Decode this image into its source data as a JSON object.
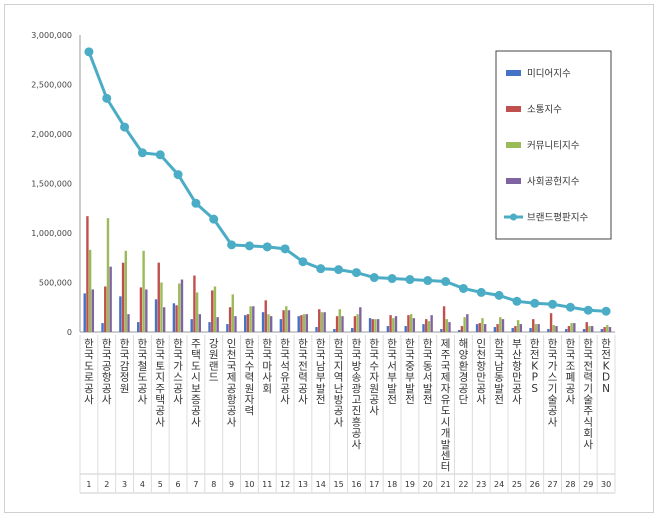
{
  "chart_data": {
    "type": "bar",
    "legend_position": "top-right",
    "grid": false,
    "ylim": [
      0,
      3000000
    ],
    "yticks": [
      "0",
      "500,000",
      "1,000,000",
      "1,500,000",
      "2,000,000",
      "2,500,000",
      "3,000,000"
    ],
    "x": [
      "1",
      "2",
      "3",
      "4",
      "5",
      "6",
      "7",
      "8",
      "9",
      "10",
      "11",
      "12",
      "13",
      "14",
      "15",
      "16",
      "17",
      "18",
      "19",
      "20",
      "21",
      "22",
      "23",
      "24",
      "25",
      "26",
      "27",
      "28",
      "29",
      "30"
    ],
    "categories": [
      "한국도로공사",
      "한국공항공사",
      "한국감정원",
      "한국철도공사",
      "한국토지주택공사",
      "한국가스공사",
      "주택도시보증공사",
      "강원랜드",
      "인천국제공항공사",
      "한국수력원자력",
      "한국마사회",
      "한국석유공사",
      "한국전력공사",
      "한국남부발전",
      "한국지역난방공사",
      "한국방송광고진흥공사",
      "한국수자원공사",
      "한국서부발전",
      "한국중부발전",
      "한국동서발전",
      "제주국제자유도시개발센터",
      "해양환경공단",
      "인천항만공사",
      "한국남동발전",
      "부산항만공사",
      "한전KPS",
      "한국가스기술공사",
      "한국조폐공사",
      "한국전력기술주식회사",
      "한전KDN"
    ],
    "series": [
      {
        "name": "미디어지수",
        "color": "#4472c4",
        "values": [
          390000,
          90000,
          360000,
          100000,
          330000,
          290000,
          130000,
          100000,
          80000,
          170000,
          200000,
          130000,
          160000,
          50000,
          30000,
          40000,
          140000,
          60000,
          60000,
          80000,
          30000,
          20000,
          80000,
          50000,
          40000,
          40000,
          30000,
          30000,
          30000,
          30000
        ]
      },
      {
        "name": "소통지수",
        "color": "#c0504d",
        "values": [
          1170000,
          460000,
          700000,
          450000,
          700000,
          270000,
          570000,
          420000,
          250000,
          180000,
          320000,
          220000,
          170000,
          230000,
          160000,
          160000,
          130000,
          170000,
          170000,
          130000,
          260000,
          60000,
          90000,
          80000,
          60000,
          130000,
          190000,
          60000,
          100000,
          50000
        ]
      },
      {
        "name": "커뮤니티지수",
        "color": "#9bbb59",
        "values": [
          830000,
          1150000,
          820000,
          820000,
          500000,
          490000,
          400000,
          460000,
          380000,
          260000,
          180000,
          260000,
          180000,
          200000,
          230000,
          180000,
          130000,
          140000,
          180000,
          110000,
          130000,
          150000,
          140000,
          150000,
          120000,
          80000,
          70000,
          90000,
          60000,
          70000
        ]
      },
      {
        "name": "사회공헌지수",
        "color": "#8064a2",
        "values": [
          430000,
          660000,
          180000,
          430000,
          250000,
          530000,
          180000,
          150000,
          160000,
          260000,
          160000,
          220000,
          180000,
          200000,
          160000,
          250000,
          130000,
          160000,
          140000,
          170000,
          100000,
          180000,
          80000,
          130000,
          80000,
          80000,
          60000,
          90000,
          60000,
          50000
        ]
      }
    ],
    "line_series": {
      "name": "브랜드평판지수",
      "color": "#4bacc6",
      "values": [
        2830000,
        2360000,
        2070000,
        1810000,
        1790000,
        1590000,
        1300000,
        1140000,
        880000,
        870000,
        860000,
        840000,
        710000,
        640000,
        630000,
        600000,
        550000,
        540000,
        530000,
        520000,
        510000,
        440000,
        400000,
        370000,
        310000,
        290000,
        280000,
        250000,
        220000,
        210000
      ]
    }
  }
}
